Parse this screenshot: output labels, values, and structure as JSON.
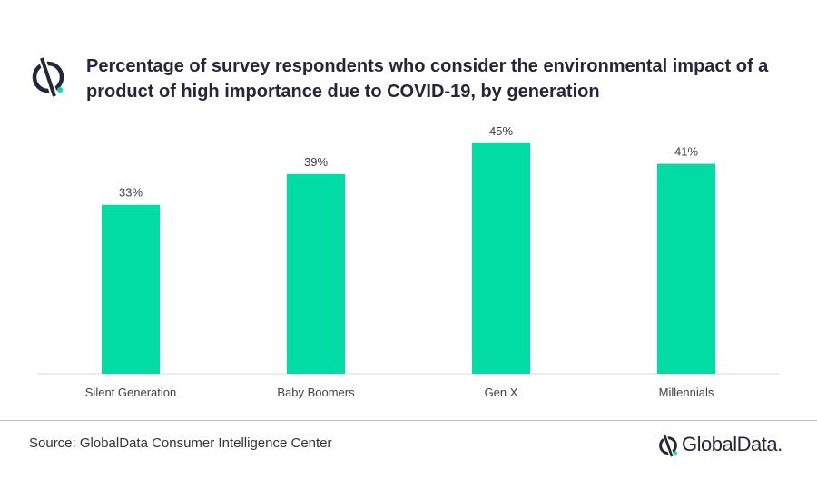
{
  "header": {
    "title": "Percentage of survey respondents who consider the environmental impact of a product of high importance due to COVID-19, by generation",
    "icon": "globaldata-logo-icon"
  },
  "footer": {
    "source": "Source: GlobalData Consumer Intelligence Center",
    "brand": "GlobalData."
  },
  "colors": {
    "bar": "#00dca3",
    "title": "#26263a",
    "accent": "#00dca3"
  },
  "chart_data": {
    "type": "bar",
    "title": "Percentage of survey respondents who consider the environmental impact of a product of high importance due to COVID-19, by generation",
    "categories": [
      "Silent Generation",
      "Baby Boomers",
      "Gen X",
      "Millennials"
    ],
    "values": [
      33,
      39,
      45,
      41
    ],
    "value_labels": [
      "33%",
      "39%",
      "45%",
      "41%"
    ],
    "unit": "%",
    "ylim": [
      0,
      45
    ],
    "grid": false,
    "legend": "none"
  }
}
